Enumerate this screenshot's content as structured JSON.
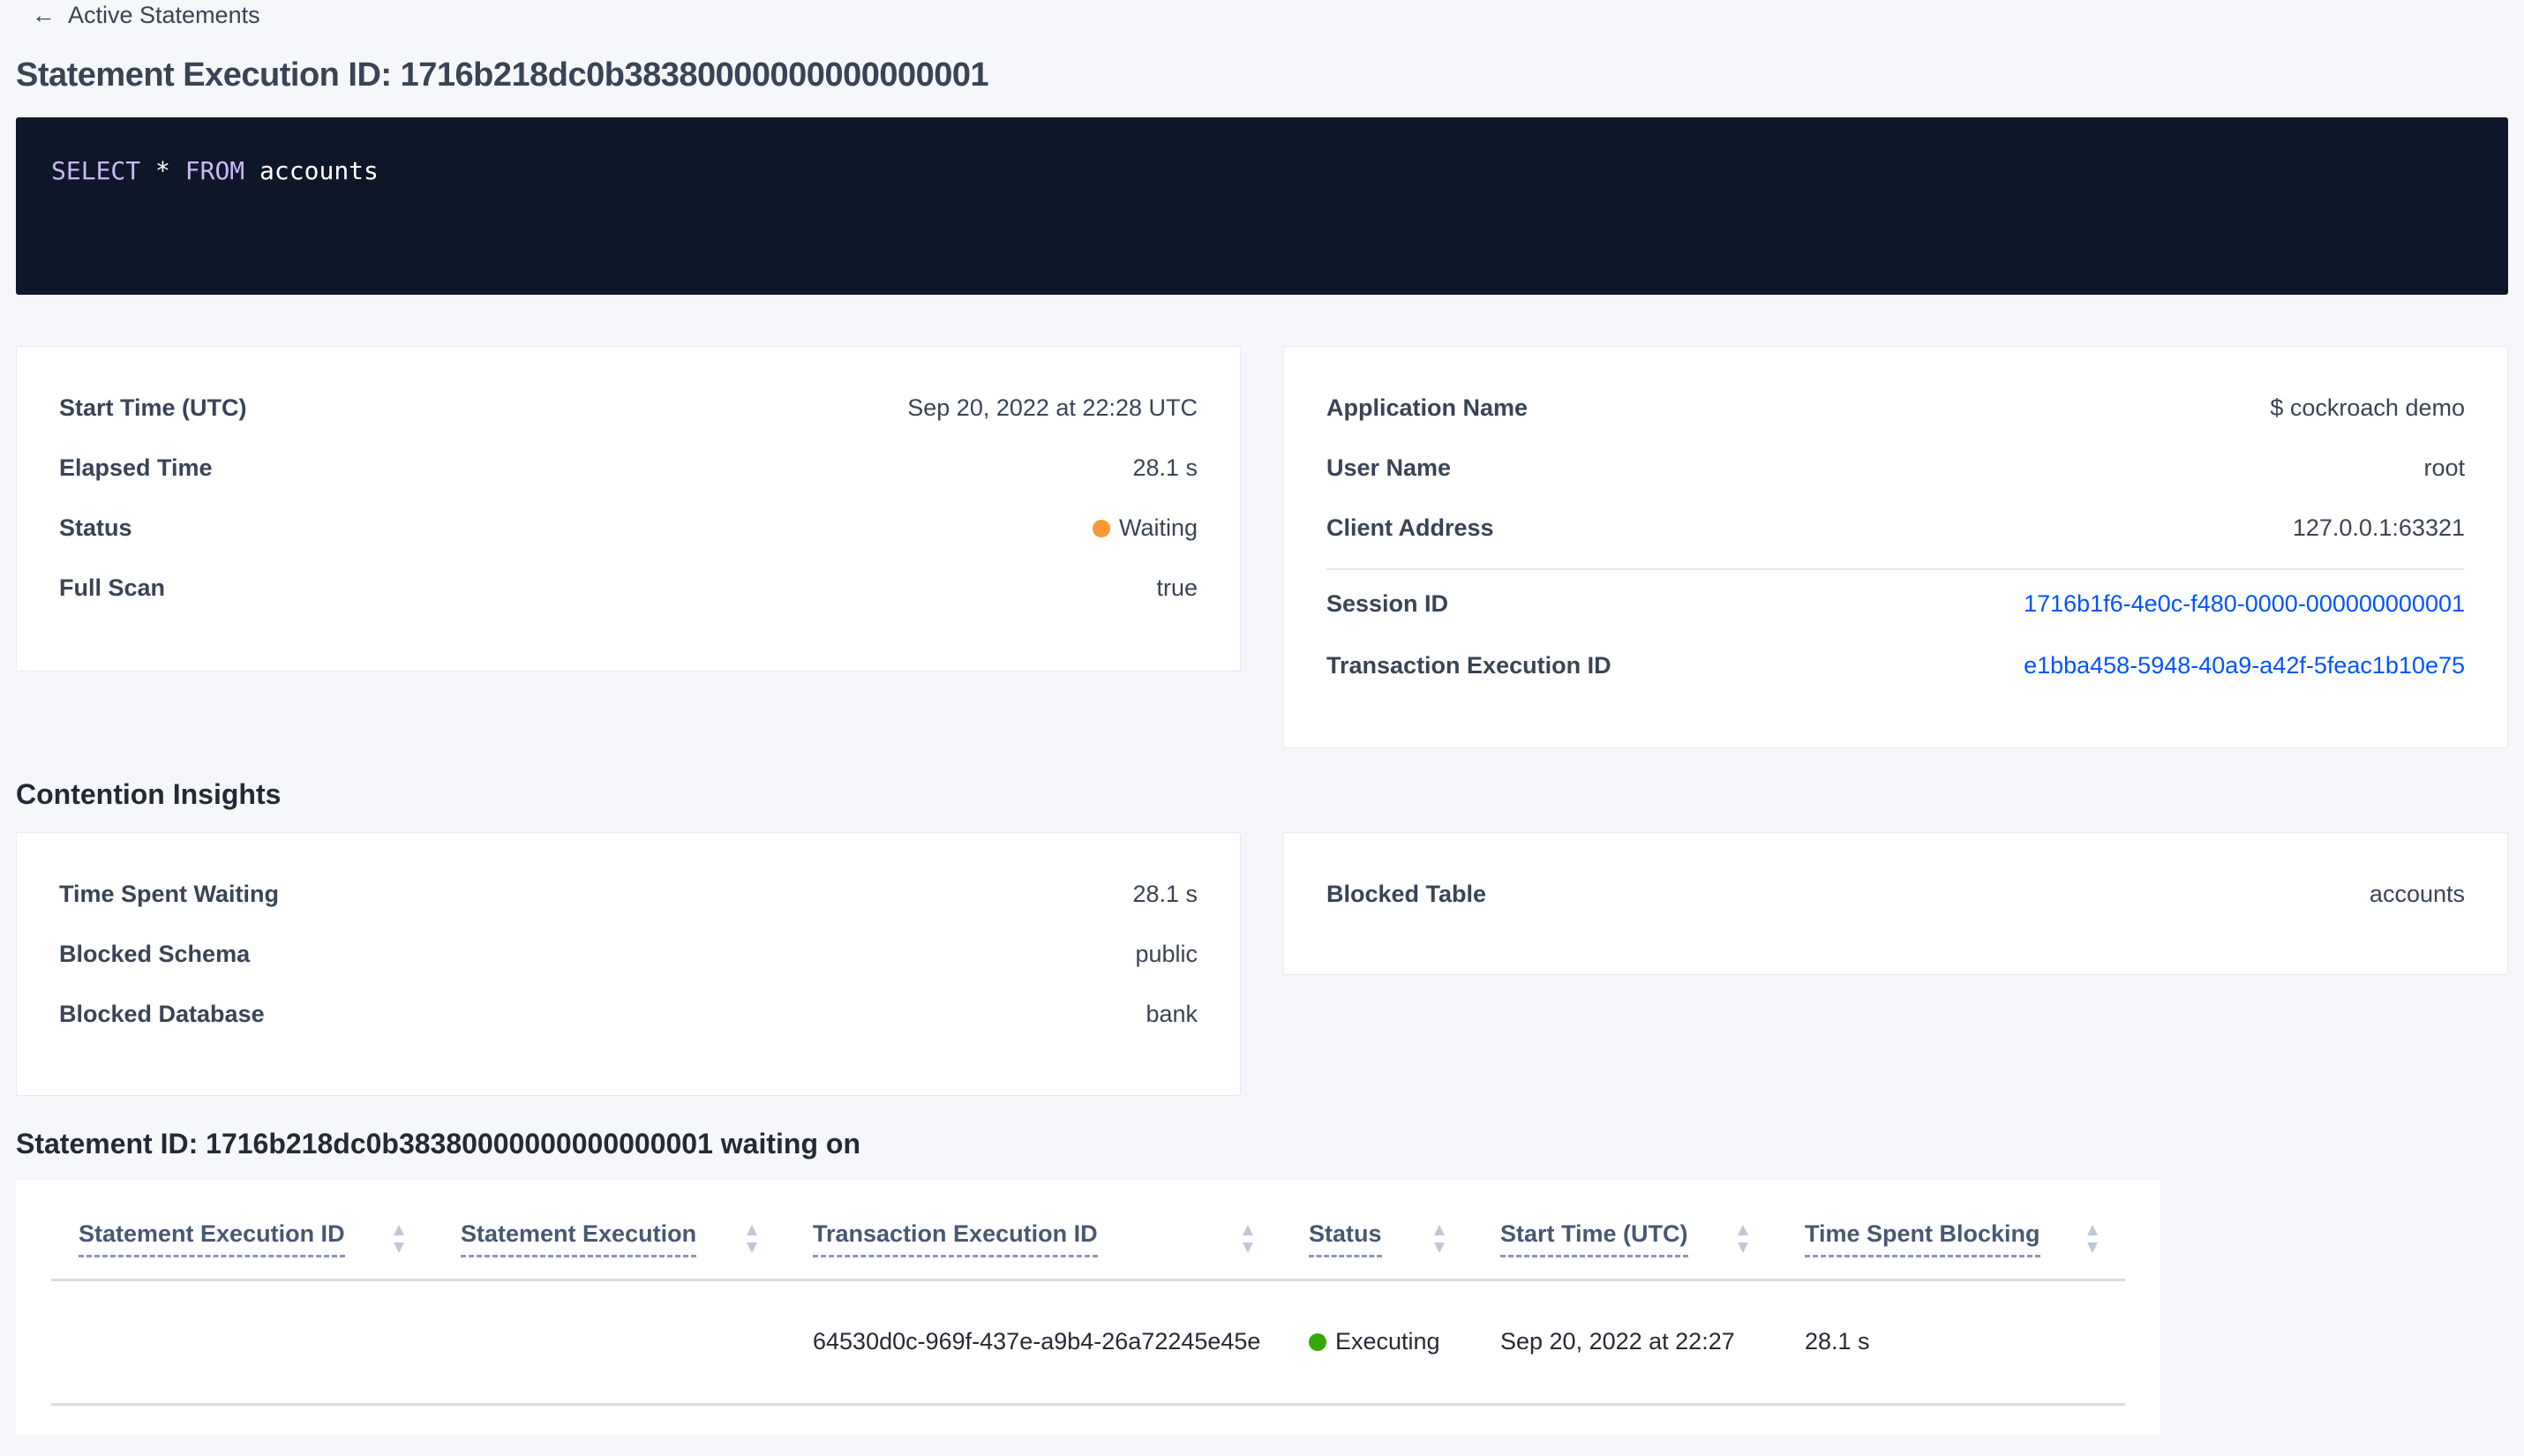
{
  "back_link": {
    "label": "Active Statements",
    "icon": "arrow-left-icon"
  },
  "title": "Statement Execution ID: 1716b218dc0b38380000000000000001",
  "sql": {
    "keyword1": "SELECT",
    "star": "*",
    "keyword2": "FROM",
    "table": "accounts"
  },
  "details_left": [
    {
      "label": "Start Time (UTC)",
      "value": "Sep 20, 2022 at 22:28 UTC"
    },
    {
      "label": "Elapsed Time",
      "value": "28.1 s"
    },
    {
      "label": "Status",
      "value": "Waiting",
      "status_color": "#f79a36"
    },
    {
      "label": "Full Scan",
      "value": "true"
    }
  ],
  "details_right": [
    {
      "label": "Application Name",
      "value": "$ cockroach demo"
    },
    {
      "label": "User Name",
      "value": "root"
    },
    {
      "label": "Client Address",
      "value": "127.0.0.1:63321"
    },
    {
      "label": "Session ID",
      "value": "1716b1f6-4e0c-f480-0000-000000000001"
    },
    {
      "label": "Transaction Execution ID",
      "value": "e1bba458-5948-40a9-a42f-5feac1b10e75"
    }
  ],
  "contention": {
    "heading": "Contention Insights",
    "left": [
      {
        "label": "Time Spent Waiting",
        "value": "28.1 s"
      },
      {
        "label": "Blocked Schema",
        "value": "public"
      },
      {
        "label": "Blocked Database",
        "value": "bank"
      }
    ],
    "right": [
      {
        "label": "Blocked Table",
        "value": "accounts"
      }
    ]
  },
  "waiting": {
    "heading": "Statement ID: 1716b218dc0b38380000000000000001 waiting on",
    "columns": [
      "Statement Execution ID",
      "Statement Execution",
      "Transaction Execution ID",
      "Status",
      "Start Time (UTC)",
      "Time Spent Blocking"
    ],
    "rows": [
      {
        "stmt_exec_id": "",
        "stmt_exec": "",
        "txn_exec_id": "64530d0c-969f-437e-a9b4-26a72245e45e",
        "status": "Executing",
        "status_color": "#37a806",
        "start_time": "Sep 20, 2022 at 22:27",
        "time_blocking": "28.1 s"
      }
    ]
  }
}
